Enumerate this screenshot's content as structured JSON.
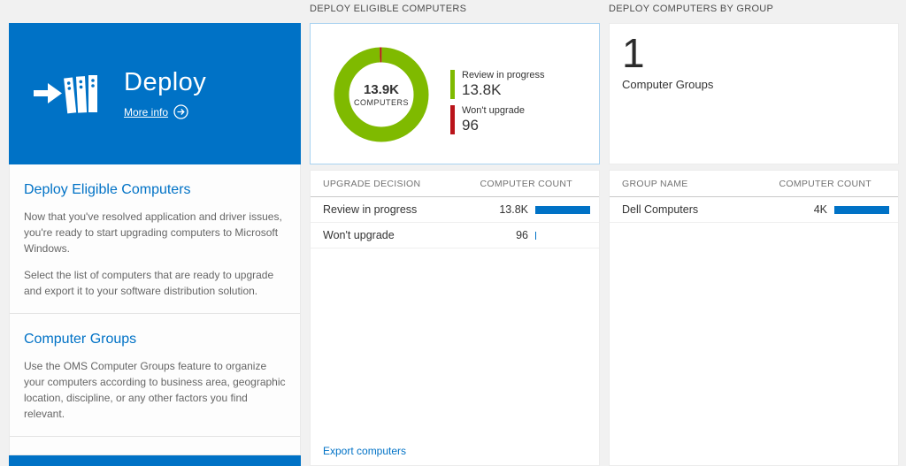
{
  "colors": {
    "accent": "#0072c6",
    "green": "#7fba00",
    "red": "#ba141a",
    "bar": "#0072c6"
  },
  "left": {
    "tile": {
      "title": "Deploy",
      "more_info_label": "More info"
    },
    "sections": [
      {
        "heading": "Deploy Eligible Computers",
        "p1": "Now that you've resolved application and driver issues, you're ready to start upgrading computers to Microsoft Windows.",
        "p2": "Select the list of computers that are ready to upgrade and export it to your software distribution solution."
      },
      {
        "heading": "Computer Groups",
        "p1": "Use the OMS Computer Groups feature to organize your computers according to business area, geographic location, discipline, or any other factors you find relevant."
      }
    ]
  },
  "middle": {
    "header": "DEPLOY ELIGIBLE COMPUTERS",
    "donut": {
      "center_value": "13.9K",
      "center_label": "COMPUTERS",
      "segments": [
        {
          "label": "Review in progress",
          "value": "13.8K",
          "count": 13800,
          "color": "#7fba00"
        },
        {
          "label": "Won't upgrade",
          "value": "96",
          "count": 96,
          "color": "#ba141a"
        }
      ]
    },
    "table": {
      "col1": "UPGRADE DECISION",
      "col2": "COMPUTER COUNT",
      "rows": [
        {
          "label": "Review in progress",
          "value": "13.8K",
          "bar_pct": 100
        },
        {
          "label": "Won't upgrade",
          "value": "96",
          "bar_pct": 1
        }
      ]
    },
    "export_link": "Export computers"
  },
  "right": {
    "header": "DEPLOY COMPUTERS BY GROUP",
    "count_value": "1",
    "count_label": "Computer Groups",
    "table": {
      "col1": "GROUP NAME",
      "col2": "COMPUTER COUNT",
      "rows": [
        {
          "label": "Dell Computers",
          "value": "4K",
          "bar_pct": 100
        }
      ]
    }
  }
}
